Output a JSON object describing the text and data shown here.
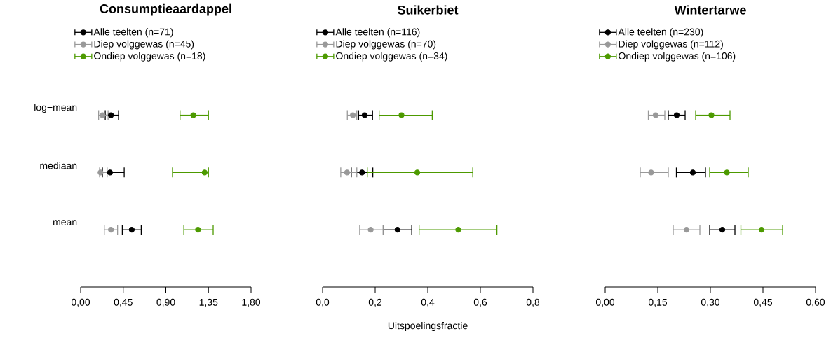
{
  "chart_data": [
    {
      "type": "scatter",
      "orientation": "horizontal",
      "title": "Consumptieaardappel",
      "categories": [
        "log−mean",
        "mediaan",
        "mean"
      ],
      "legend": "top left",
      "marker": "circle",
      "xlim": [
        0,
        1.8
      ],
      "xticks": [
        {
          "value": 0,
          "label": "0,00"
        },
        {
          "value": 0.45,
          "label": "0,45"
        },
        {
          "value": 0.9,
          "label": "0,90"
        },
        {
          "value": 1.35,
          "label": "1,35"
        },
        {
          "value": 1.8,
          "label": "1,80"
        }
      ],
      "series": [
        {
          "name": "Alle teelten (n=71)",
          "color": "#000000",
          "values": [
            0.32,
            0.31,
            0.54
          ],
          "errors": [
            [
              0.26,
              0.4
            ],
            [
              0.23,
              0.46
            ],
            [
              0.44,
              0.64
            ]
          ]
        },
        {
          "name": "Diep volggewas (n=45)",
          "color": "#999999",
          "values": [
            0.23,
            0.21,
            0.32
          ],
          "errors": [
            [
              0.19,
              0.29
            ],
            [
              0.2,
              0.28
            ],
            [
              0.25,
              0.39
            ]
          ]
        },
        {
          "name": "Ondiep volggewas (n=18)",
          "color": "#4d9a00",
          "values": [
            1.19,
            1.31,
            1.24
          ],
          "errors": [
            [
              1.05,
              1.35
            ],
            [
              0.97,
              1.35
            ],
            [
              1.09,
              1.4
            ]
          ]
        }
      ]
    },
    {
      "type": "scatter",
      "orientation": "horizontal",
      "title": "Suikerbiet",
      "xlabel": "Uitspoelingsfractie",
      "categories": [
        null,
        null,
        null
      ],
      "legend": "top left",
      "marker": "circle",
      "tick_labels": "x",
      "xlim": [
        0,
        0.8
      ],
      "xticks": [
        {
          "value": 0,
          "label": "0,0"
        },
        {
          "value": 0.2,
          "label": "0,2"
        },
        {
          "value": 0.4,
          "label": "0,4"
        },
        {
          "value": 0.6,
          "label": "0,6"
        },
        {
          "value": 0.8,
          "label": "0,8"
        }
      ],
      "series": [
        {
          "name": "Alle teelten (n=116)",
          "color": "#000000",
          "values": [
            0.16,
            0.15,
            0.285
          ],
          "errors": [
            [
              0.137,
              0.19
            ],
            [
              0.109,
              0.191
            ],
            [
              0.232,
              0.339
            ]
          ]
        },
        {
          "name": "Diep volggewas (n=70)",
          "color": "#999999",
          "values": [
            0.115,
            0.093,
            0.183
          ],
          "errors": [
            [
              0.094,
              0.13
            ],
            [
              0.069,
              0.13
            ],
            [
              0.141,
              0.23
            ]
          ]
        },
        {
          "name": "Ondiep volggewas (n=34)",
          "color": "#4d9a00",
          "values": [
            0.3,
            0.36,
            0.516
          ],
          "errors": [
            [
              0.215,
              0.417
            ],
            [
              0.17,
              0.571
            ],
            [
              0.367,
              0.663
            ]
          ]
        }
      ]
    },
    {
      "type": "scatter",
      "orientation": "horizontal",
      "title": "Wintertarwe",
      "categories": [
        null,
        null,
        null
      ],
      "legend": "top left",
      "marker": "circle",
      "tick_labels": "x",
      "xlim": [
        0,
        0.6
      ],
      "xticks": [
        {
          "value": 0,
          "label": "0,00"
        },
        {
          "value": 0.15,
          "label": "0,15"
        },
        {
          "value": 0.3,
          "label": "0,30"
        },
        {
          "value": 0.45,
          "label": "0,45"
        },
        {
          "value": 0.6,
          "label": "0,60"
        }
      ],
      "series": [
        {
          "name": "Alle teelten (n=230)",
          "color": "#000000",
          "values": [
            0.204,
            0.25,
            0.334
          ],
          "errors": [
            [
              0.18,
              0.228
            ],
            [
              0.203,
              0.286
            ],
            [
              0.298,
              0.37
            ]
          ]
        },
        {
          "name": "Diep volggewas (n=112)",
          "color": "#999999",
          "values": [
            0.144,
            0.131,
            0.232
          ],
          "errors": [
            [
              0.123,
              0.17
            ],
            [
              0.1,
              0.18
            ],
            [
              0.194,
              0.27
            ]
          ]
        },
        {
          "name": "Ondiep volggewas (n=106)",
          "color": "#4d9a00",
          "values": [
            0.303,
            0.347,
            0.446
          ],
          "errors": [
            [
              0.258,
              0.356
            ],
            [
              0.298,
              0.408
            ],
            [
              0.387,
              0.506
            ]
          ]
        }
      ]
    }
  ]
}
